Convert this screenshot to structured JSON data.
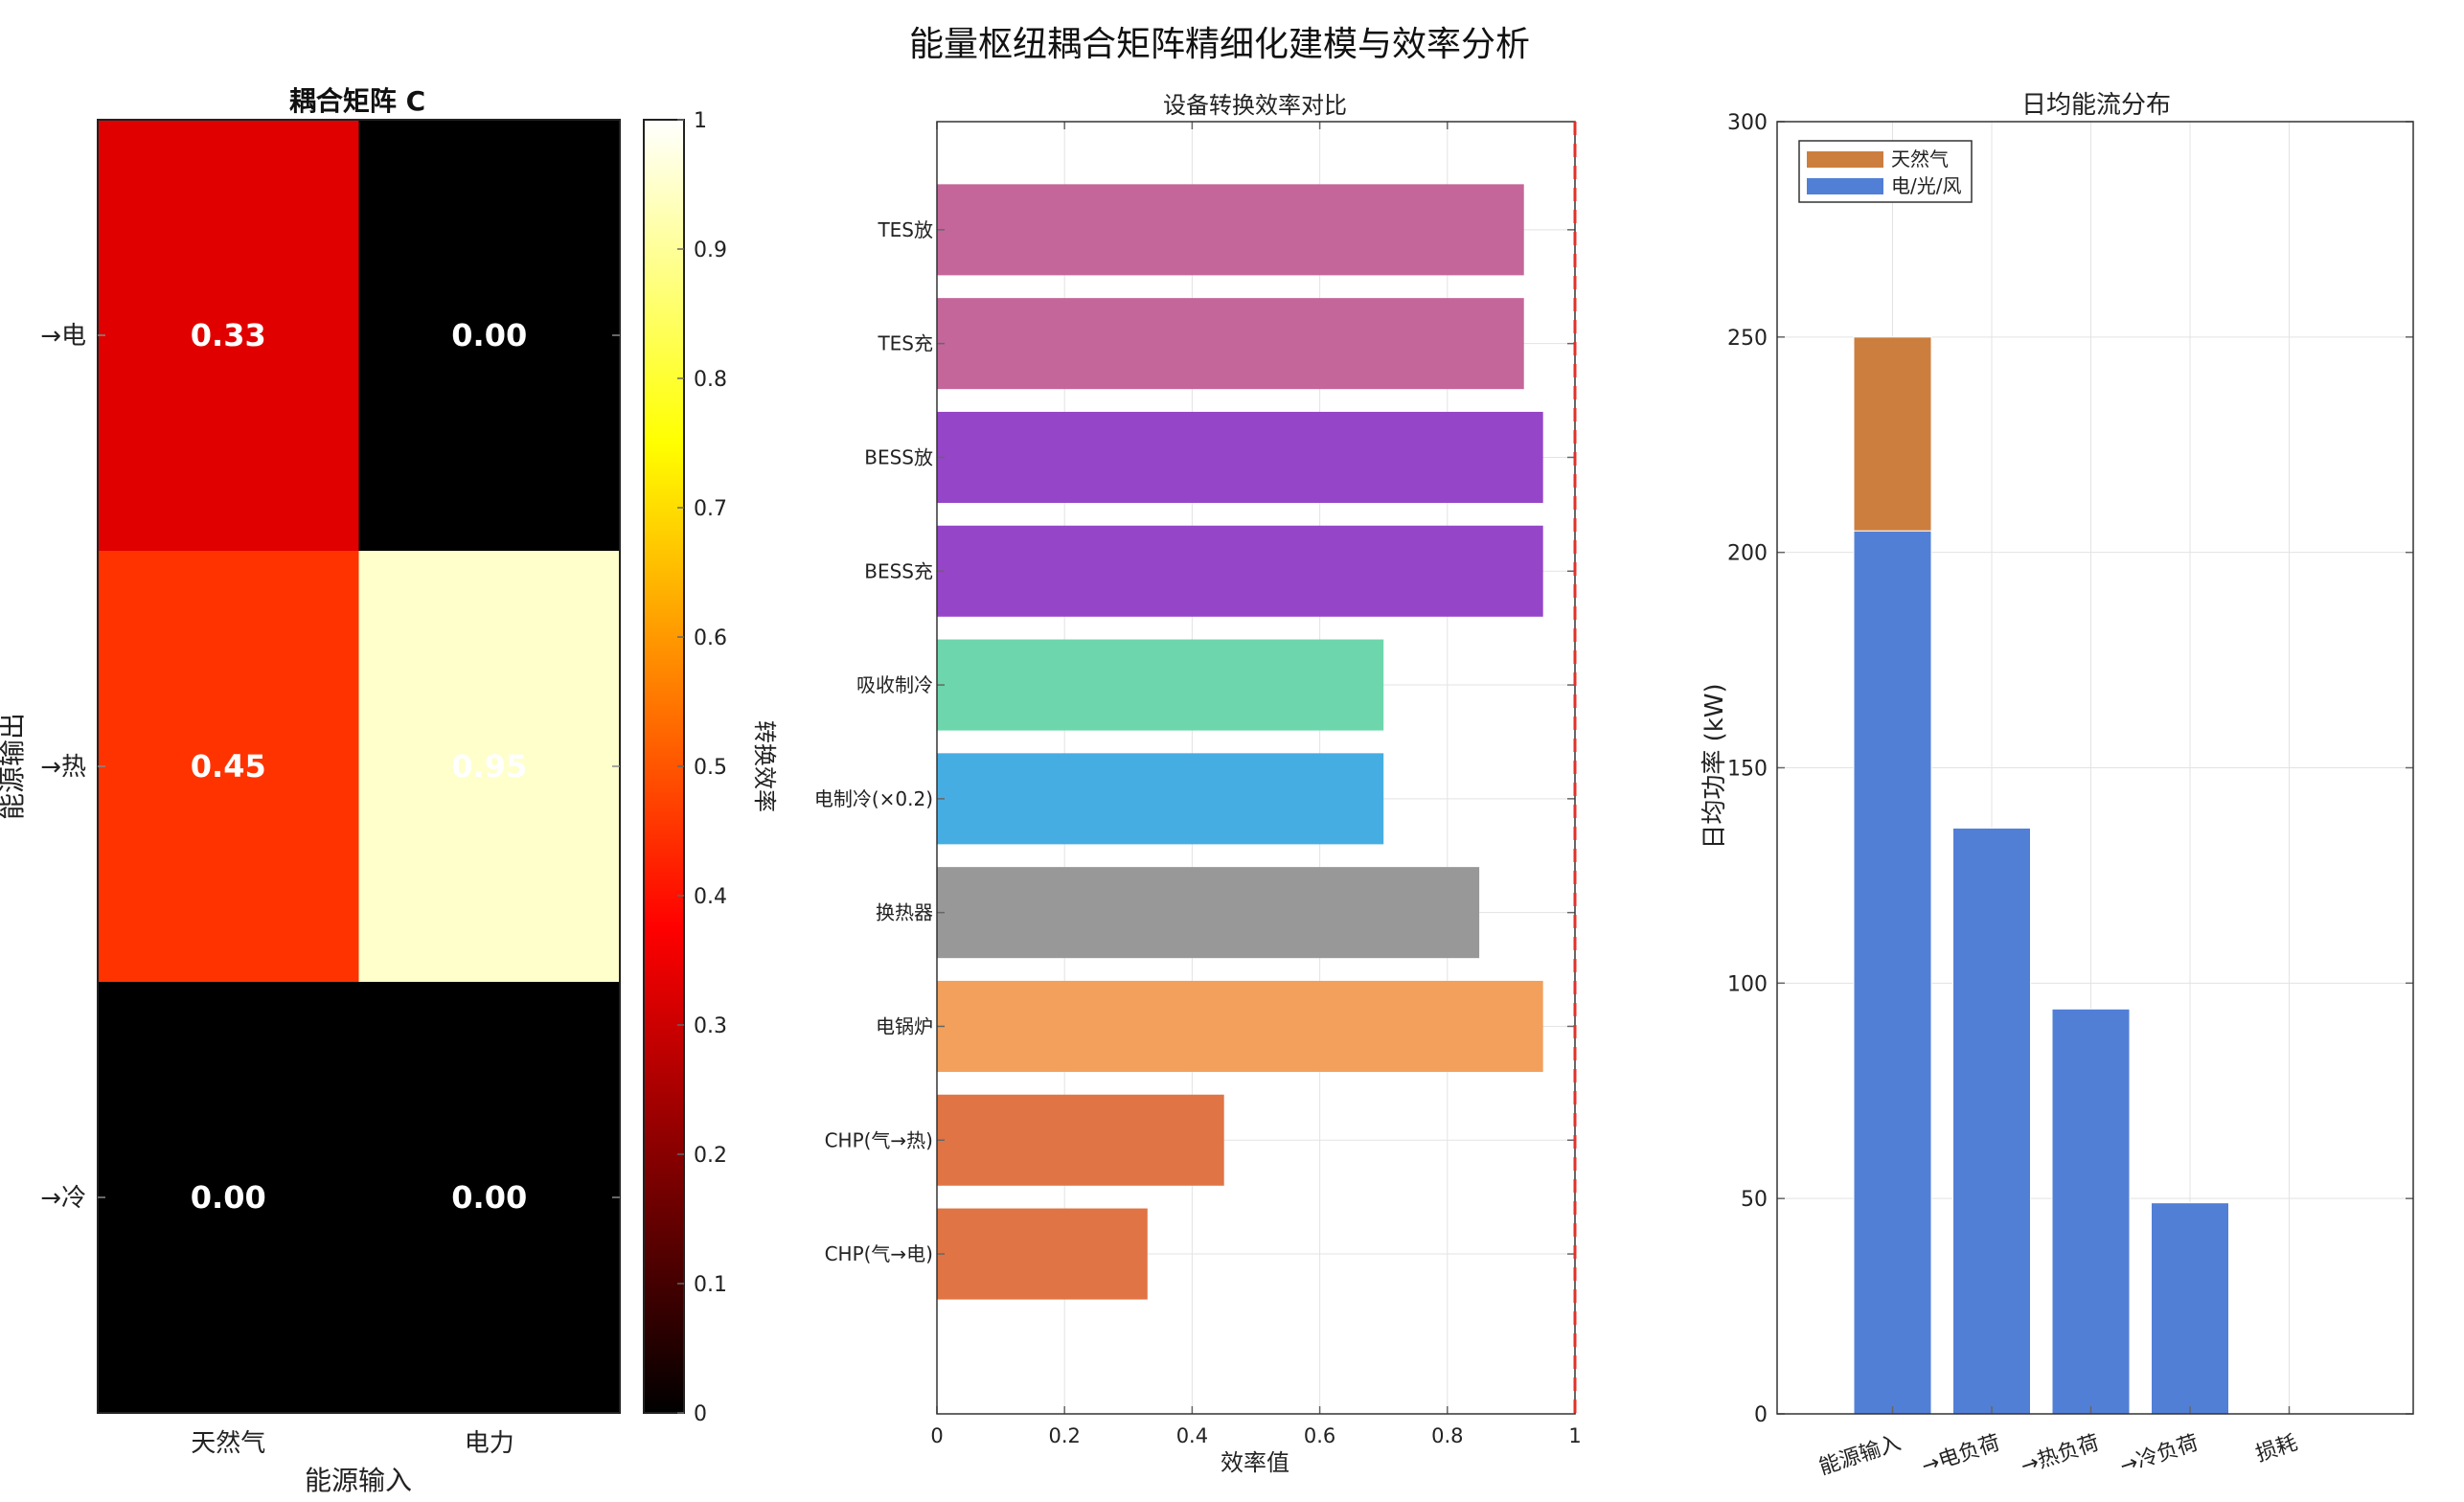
{
  "figure_title": "能量枢纽耦合矩阵精细化建模与效率分析",
  "chart_data": [
    {
      "type": "heatmap",
      "title": "耦合矩阵 C",
      "xlabel": "能源输入",
      "ylabel": "能源输出",
      "x_categories": [
        "天然气",
        "电力"
      ],
      "y_categories": [
        "→电",
        "→热",
        "→冷"
      ],
      "values": [
        [
          0.33,
          0.0
        ],
        [
          0.45,
          0.95
        ],
        [
          0.0,
          0.0
        ]
      ],
      "value_labels": [
        [
          "0.33",
          "0.00"
        ],
        [
          "0.45",
          "0.95"
        ],
        [
          "0.00",
          "0.00"
        ]
      ],
      "colormap": "hot",
      "clim": [
        0,
        1
      ],
      "colorbar_label": "转换效率",
      "colorbar_ticks": [
        "0",
        "0.1",
        "0.2",
        "0.3",
        "0.4",
        "0.5",
        "0.6",
        "0.7",
        "0.8",
        "0.9",
        "1"
      ]
    },
    {
      "type": "bar",
      "orientation": "horizontal",
      "title": "设备转换效率对比",
      "xlabel": "效率值",
      "xlim": [
        0,
        1
      ],
      "x_ticks": [
        "0",
        "0.2",
        "0.4",
        "0.6",
        "0.8",
        "1"
      ],
      "grid": true,
      "reference_line": {
        "x": 1,
        "style": "dashed",
        "color": "#e0302a"
      },
      "categories": [
        "TES放",
        "TES充",
        "BESS放",
        "BESS充",
        "吸收制冷",
        "电制冷(×0.2)",
        "换热器",
        "电锅炉",
        "CHP(气→热)",
        "CHP(气→电)"
      ],
      "values": [
        0.92,
        0.92,
        0.95,
        0.95,
        0.7,
        0.7,
        0.85,
        0.95,
        0.45,
        0.33
      ],
      "colors": [
        "#c4669a",
        "#c4669a",
        "#9545c8",
        "#9545c8",
        "#6dd6ac",
        "#46ade2",
        "#989898",
        "#f2a05c",
        "#e07444",
        "#e07444"
      ]
    },
    {
      "type": "bar",
      "stacked": true,
      "title": "日均能流分布",
      "ylabel": "日均功率 (kW)",
      "ylim": [
        0,
        300
      ],
      "y_ticks": [
        "0",
        "50",
        "100",
        "150",
        "200",
        "250",
        "300"
      ],
      "grid": true,
      "legend_position": "top-left",
      "categories": [
        "能源输入",
        "→电负荷",
        "→热负荷",
        "→冷负荷",
        "损耗"
      ],
      "series": [
        {
          "name": "电/光/风",
          "color": "#527fd6",
          "values": [
            205,
            136,
            94,
            49,
            0
          ]
        },
        {
          "name": "天然气",
          "color": "#cc7e3e",
          "values": [
            45,
            0,
            0,
            0,
            0
          ]
        }
      ]
    }
  ]
}
